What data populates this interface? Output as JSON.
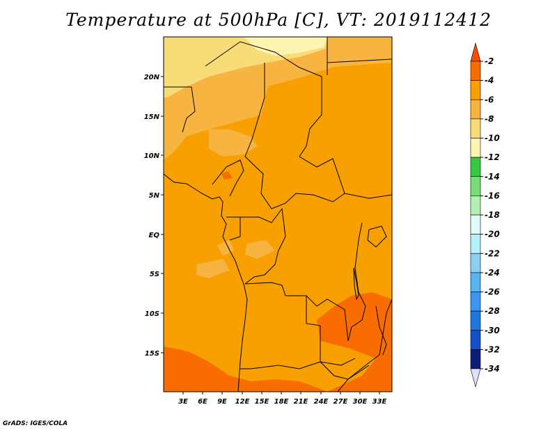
{
  "title": "Temperature at 500hPa [C], VT: 2019112412",
  "footer": "GrADS: IGES/COLA",
  "map": {
    "lon_labels": [
      "3E",
      "6E",
      "9E",
      "12E",
      "15E",
      "18E",
      "21E",
      "24E",
      "27E",
      "30E",
      "33E"
    ],
    "lat_labels": [
      "20N",
      "15N",
      "10N",
      "5N",
      "EQ",
      "5S",
      "10S",
      "15S"
    ],
    "fill_colors": {
      "minus4_to_minus2": "#f86c00",
      "minus6_to_minus4": "#f7a000",
      "minus8_to_minus6": "#f8b440",
      "minus10_to_minus8": "#f8dc78",
      "coast_and_borders": "#000000"
    }
  },
  "colorbar": {
    "labels": [
      "-2",
      "-4",
      "-6",
      "-8",
      "-10",
      "-12",
      "-14",
      "-16",
      "-18",
      "-20",
      "-22",
      "-24",
      "-26",
      "-28",
      "-30",
      "-32",
      "-34"
    ],
    "colors": [
      "#f84c00",
      "#f86c00",
      "#f7a000",
      "#f8b440",
      "#f8dc78",
      "#fcf4b0",
      "#38c840",
      "#78dc78",
      "#b4f0b4",
      "#e0fcf8",
      "#b4f0fc",
      "#8ccff0",
      "#5ab4f0",
      "#3c96f0",
      "#1e78dc",
      "#1450c8",
      "#0c1e78",
      "#e0e0f8"
    ]
  }
}
